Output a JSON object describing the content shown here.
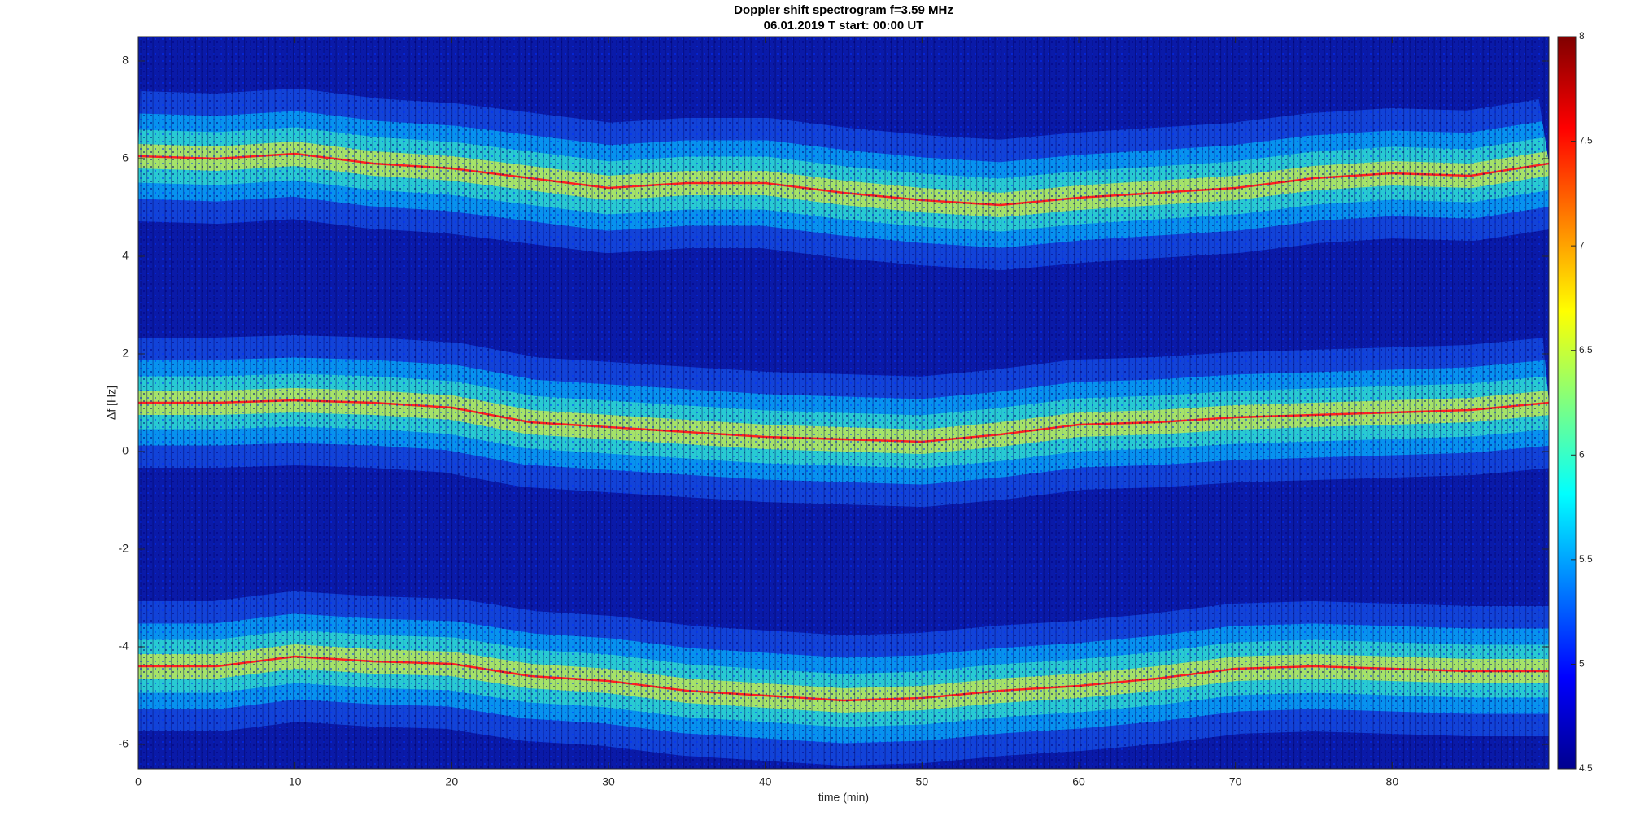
{
  "chart_data": {
    "type": "spectrogram",
    "title": "Doppler shift spectrogram f=3.59 MHz",
    "subtitle": "06.01.2019   T start: 00:00 UT",
    "xlabel": "time (min)",
    "ylabel": "Δf [Hz]",
    "x": [
      0,
      5,
      10,
      15,
      20,
      25,
      30,
      35,
      40,
      45,
      50,
      55,
      60,
      65,
      70,
      75,
      80,
      85,
      90
    ],
    "series": [
      {
        "color": "#ff2020",
        "values": [
          6.05,
          6.0,
          6.1,
          5.9,
          5.8,
          5.6,
          5.4,
          5.5,
          5.5,
          5.3,
          5.15,
          5.05,
          5.2,
          5.3,
          5.4,
          5.6,
          5.7,
          5.65,
          5.9
        ]
      },
      {
        "color": "#ff2020",
        "values": [
          1.0,
          1.0,
          1.05,
          1.0,
          0.9,
          0.6,
          0.5,
          0.4,
          0.3,
          0.25,
          0.2,
          0.35,
          0.55,
          0.6,
          0.7,
          0.75,
          0.8,
          0.85,
          1.0
        ]
      },
      {
        "color": "#ff2020",
        "values": [
          -4.4,
          -4.4,
          -4.2,
          -4.3,
          -4.35,
          -4.6,
          -4.7,
          -4.9,
          -5.0,
          -5.1,
          -5.05,
          -4.9,
          -4.8,
          -4.65,
          -4.45,
          -4.4,
          -4.45,
          -4.5,
          -4.5
        ]
      }
    ],
    "xlim": [
      0,
      90
    ],
    "xticks": [
      0,
      10,
      20,
      30,
      40,
      50,
      60,
      70,
      80
    ],
    "ylim": [
      -6.5,
      8.5
    ],
    "yticks": [
      -6,
      -4,
      -2,
      0,
      2,
      4,
      6,
      8
    ],
    "clim": [
      4.5,
      8
    ],
    "cticks": [
      4.5,
      5,
      5.5,
      6,
      6.5,
      7,
      7.5,
      8
    ],
    "colormap": "jet"
  }
}
